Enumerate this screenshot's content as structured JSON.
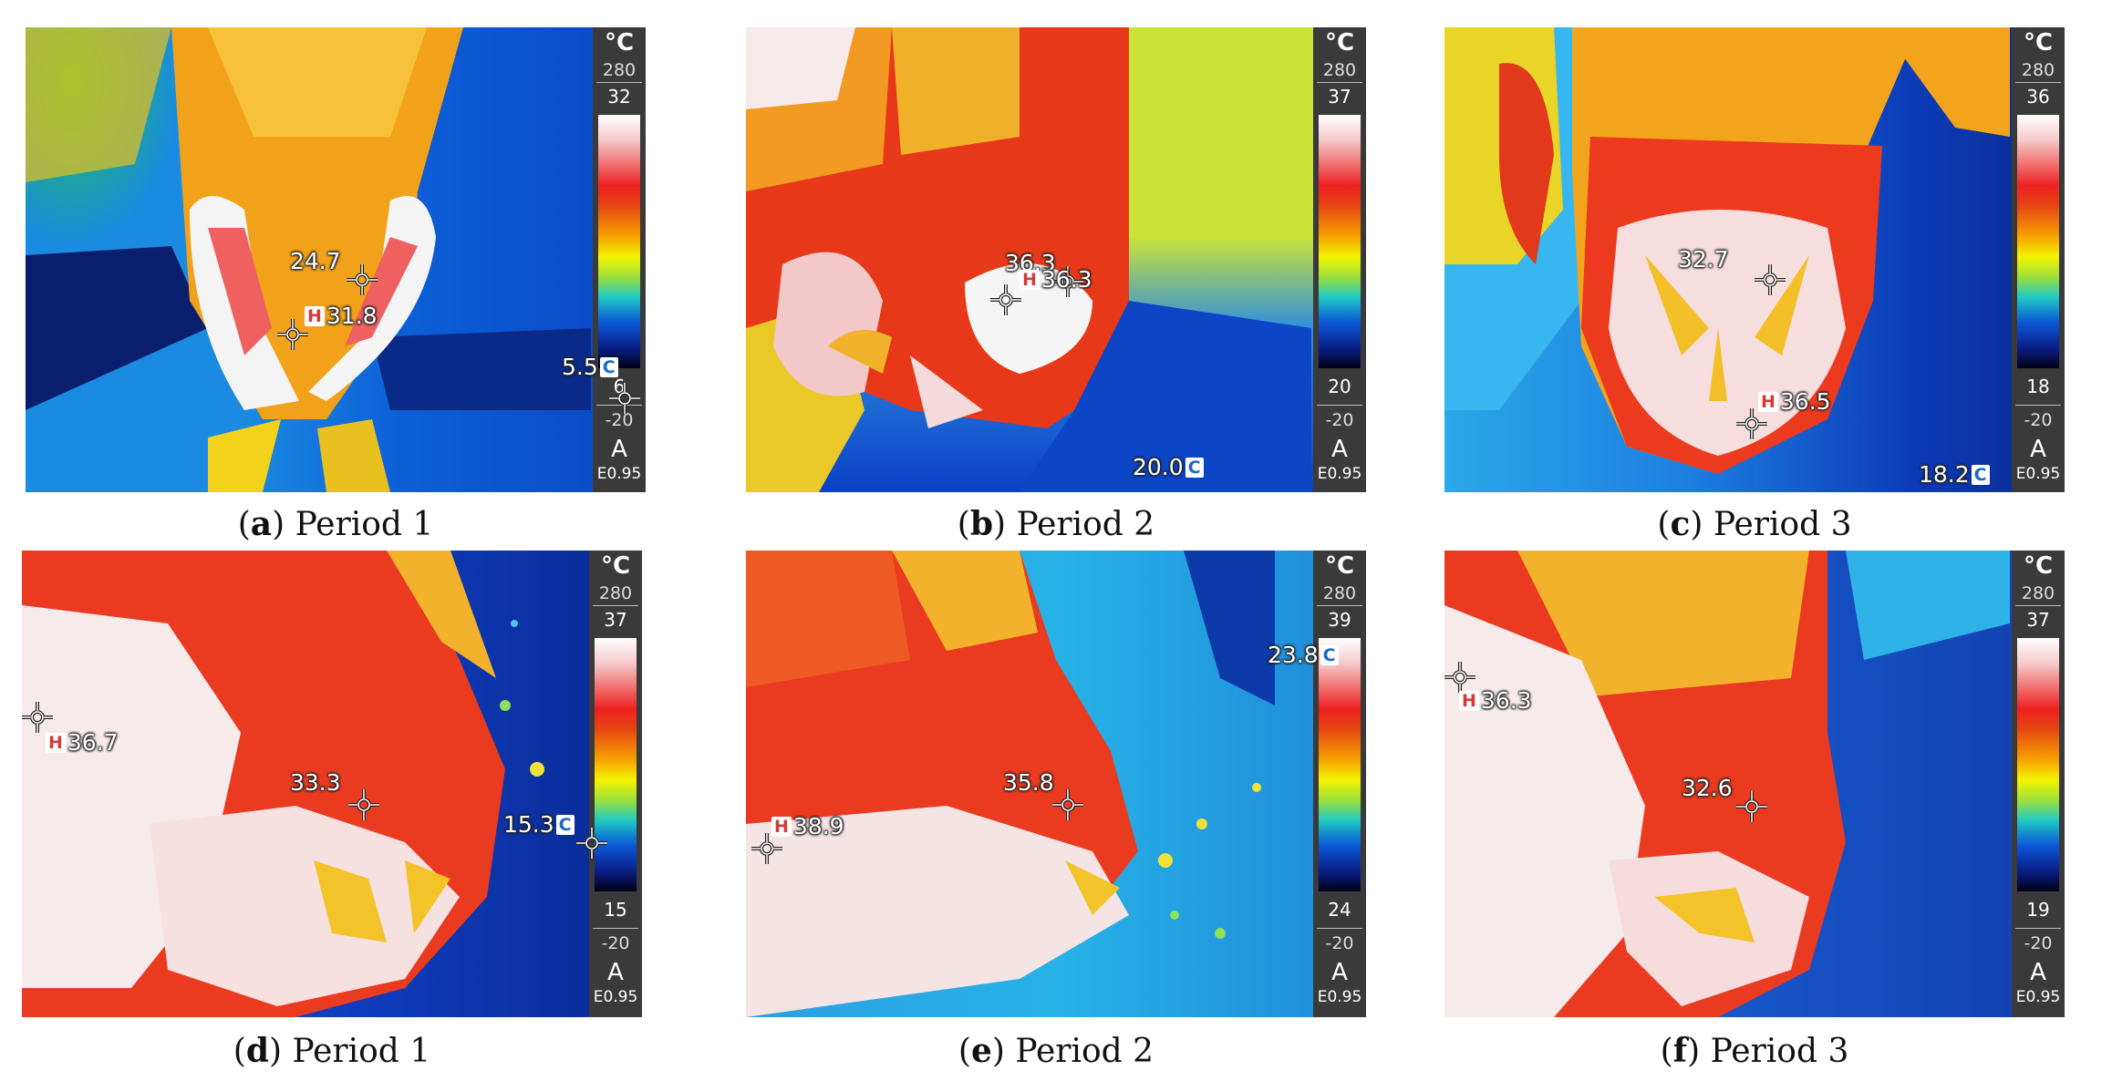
{
  "panels": [
    {
      "letter": "a",
      "caption": "Period 1",
      "scale": {
        "unit": "°C",
        "max_range": "280",
        "top": "32",
        "bottom": "6",
        "min_range": "-20",
        "mode": "A",
        "emissivity": "E0.95"
      },
      "readouts": [
        {
          "label": "24.7",
          "type": "plain"
        },
        {
          "label": "31.8",
          "type": "hot",
          "tag": "H"
        },
        {
          "label": "5.5",
          "type": "cold",
          "tag": "C"
        }
      ]
    },
    {
      "letter": "b",
      "caption": "Period 2",
      "scale": {
        "unit": "°C",
        "max_range": "280",
        "top": "37",
        "bottom": "20",
        "min_range": "-20",
        "mode": "A",
        "emissivity": "E0.95"
      },
      "readouts": [
        {
          "label": "36.3",
          "type": "plain"
        },
        {
          "label": "36.3",
          "type": "hot",
          "tag": "H"
        },
        {
          "label": "20.0",
          "type": "cold",
          "tag": "C"
        }
      ]
    },
    {
      "letter": "c",
      "caption": "Period 3",
      "scale": {
        "unit": "°C",
        "max_range": "280",
        "top": "36",
        "bottom": "18",
        "min_range": "-20",
        "mode": "A",
        "emissivity": "E0.95"
      },
      "readouts": [
        {
          "label": "32.7",
          "type": "plain"
        },
        {
          "label": "36.5",
          "type": "hot",
          "tag": "H"
        },
        {
          "label": "18.2",
          "type": "cold",
          "tag": "C"
        }
      ]
    },
    {
      "letter": "d",
      "caption": "Period 1",
      "scale": {
        "unit": "°C",
        "max_range": "280",
        "top": "37",
        "bottom": "15",
        "min_range": "-20",
        "mode": "A",
        "emissivity": "E0.95"
      },
      "readouts": [
        {
          "label": "36.7",
          "type": "hot",
          "tag": "H"
        },
        {
          "label": "33.3",
          "type": "plain"
        },
        {
          "label": "15.3",
          "type": "cold",
          "tag": "C"
        }
      ]
    },
    {
      "letter": "e",
      "caption": "Period 2",
      "scale": {
        "unit": "°C",
        "max_range": "280",
        "top": "39",
        "bottom": "24",
        "min_range": "-20",
        "mode": "A",
        "emissivity": "E0.95"
      },
      "readouts": [
        {
          "label": "23.8",
          "type": "cold",
          "tag": "C"
        },
        {
          "label": "35.8",
          "type": "plain"
        },
        {
          "label": "38.9",
          "type": "hot",
          "tag": "H"
        }
      ]
    },
    {
      "letter": "f",
      "caption": "Period 3",
      "scale": {
        "unit": "°C",
        "max_range": "280",
        "top": "37",
        "bottom": "19",
        "min_range": "-20",
        "mode": "A",
        "emissivity": "E0.95"
      },
      "readouts": [
        {
          "label": "36.3",
          "type": "hot",
          "tag": "H"
        },
        {
          "label": "32.6",
          "type": "plain"
        }
      ]
    }
  ]
}
